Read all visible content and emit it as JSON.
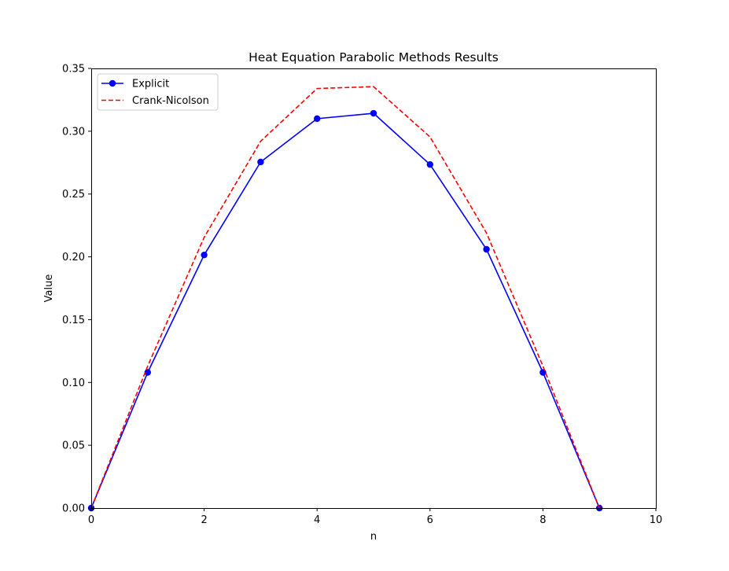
{
  "chart_data": {
    "type": "line",
    "title": "Heat Equation Parabolic Methods Results",
    "xlabel": "n",
    "ylabel": "Value",
    "xlim": [
      0,
      10
    ],
    "ylim": [
      0,
      0.35
    ],
    "x_ticks": [
      0,
      2,
      4,
      6,
      8,
      10
    ],
    "x_tick_labels": [
      "0",
      "2",
      "4",
      "6",
      "8",
      "10"
    ],
    "y_ticks": [
      0,
      0.05,
      0.1,
      0.15,
      0.2,
      0.25,
      0.3,
      0.35
    ],
    "y_tick_labels": [
      "0.00",
      "0.05",
      "0.10",
      "0.15",
      "0.20",
      "0.25",
      "0.30",
      "0.35"
    ],
    "grid": false,
    "legend_position": "upper left",
    "x": [
      0,
      1,
      2,
      3,
      4,
      5,
      6,
      7,
      8,
      9
    ],
    "series": [
      {
        "name": "Explicit",
        "color": "#0000ff",
        "line_style": "solid",
        "marker": "circle",
        "values": [
          0.0,
          0.108,
          0.2015,
          0.2755,
          0.31,
          0.3143,
          0.2735,
          0.206,
          0.108,
          0.0
        ]
      },
      {
        "name": "Crank-Nicolson",
        "color": "#ff0000",
        "line_style": "dashed",
        "marker": "none",
        "values": [
          0.0,
          0.113,
          0.2155,
          0.292,
          0.334,
          0.3355,
          0.2955,
          0.219,
          0.113,
          0.0
        ]
      }
    ]
  }
}
